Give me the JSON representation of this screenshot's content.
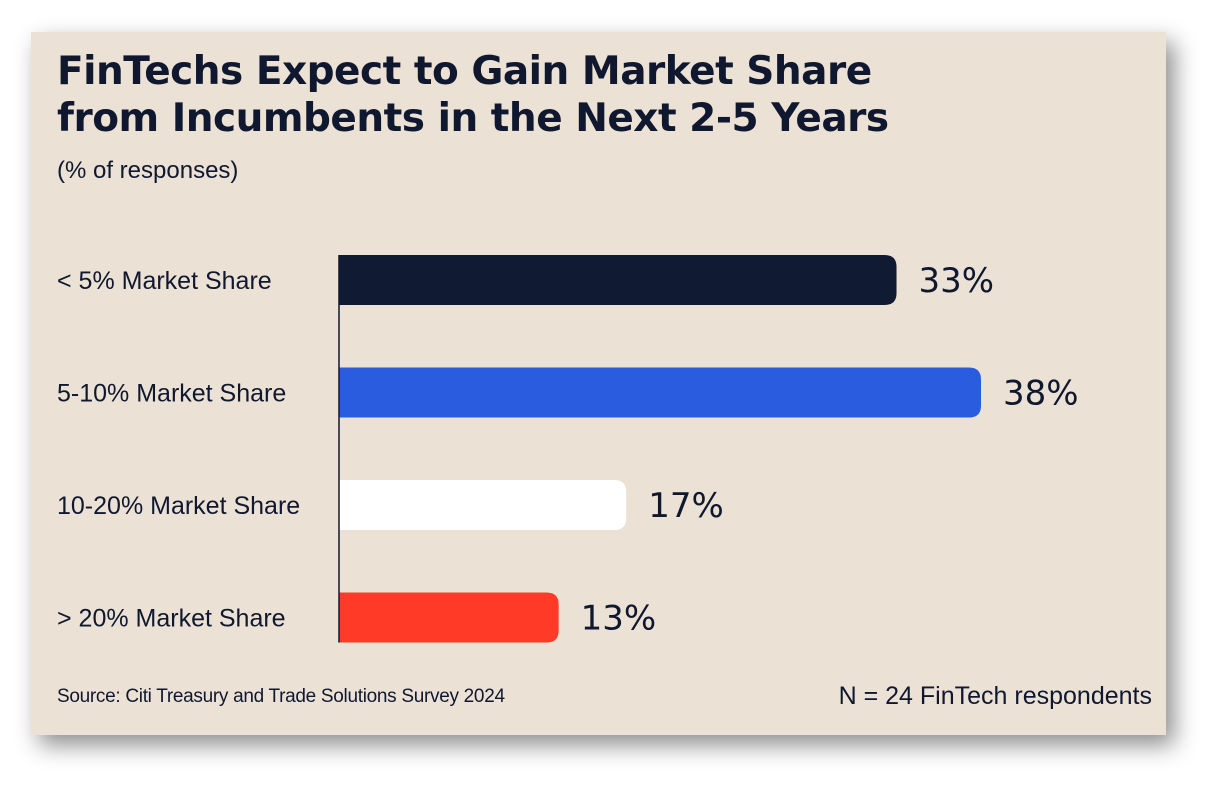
{
  "chart_data": {
    "type": "bar",
    "orientation": "horizontal",
    "title": "FinTechs Expect to Gain Market Share from Incumbents in the Next 2-5 Years",
    "title_lines": [
      "FinTechs Expect to Gain Market Share",
      "from Incumbents in the Next 2-5 Years"
    ],
    "subtitle": "(% of responses)",
    "categories": [
      "< 5% Market Share",
      "5-10% Market Share",
      "10-20% Market Share",
      "> 20% Market Share"
    ],
    "values": [
      33,
      38,
      17,
      13
    ],
    "value_labels": [
      "33%",
      "38%",
      "17%",
      "13%"
    ],
    "bar_colors": [
      "#101a33",
      "#2a5ce0",
      "#ffffff",
      "#ff3b27"
    ],
    "xlim": [
      0,
      38
    ],
    "grid": false,
    "legend": "none"
  },
  "footer": {
    "source": "Source: Citi Treasury and Trade Solutions Survey 2024",
    "respondents": "N = 24 FinTech respondents"
  },
  "colors": {
    "background": "#ebe1d5",
    "text": "#10182f"
  }
}
